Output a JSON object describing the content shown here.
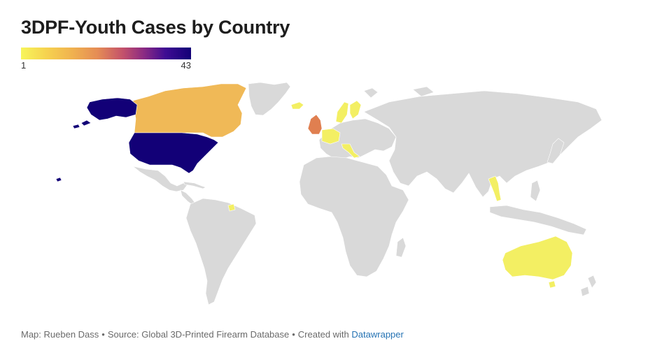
{
  "title": "3DPF-Youth Cases by Country",
  "legend": {
    "min": "1",
    "max": "43",
    "colors": [
      "#f7f55a",
      "#f0b24f",
      "#e58c55",
      "#c3516b",
      "#8c2b83",
      "#3e0c93",
      "#120077"
    ]
  },
  "colors": {
    "no_data": "#d9d9d9",
    "border": "#ffffff",
    "link": "#2472b3"
  },
  "regions": [
    {
      "name": "United States",
      "color": "#120077"
    },
    {
      "name": "Canada",
      "color": "#f0b957"
    },
    {
      "name": "United Kingdom",
      "color": "#e07f50"
    },
    {
      "name": "Australia",
      "color": "#f3ef63"
    },
    {
      "name": "Sweden",
      "color": "#f3ef63"
    },
    {
      "name": "Finland",
      "color": "#f3ef63"
    },
    {
      "name": "Germany",
      "color": "#f3ef63"
    },
    {
      "name": "Italy",
      "color": "#f3ef63"
    },
    {
      "name": "Vietnam",
      "color": "#f3ef63"
    },
    {
      "name": "Iceland",
      "color": "#f3ef63"
    },
    {
      "name": "Suriname",
      "color": "#f3ef63"
    }
  ],
  "footer": {
    "map_by": "Map: Rueben Dass",
    "source": "Source: Global 3D-Printed Firearm Database",
    "created": "Created with",
    "link": "Datawrapper",
    "separator": "•"
  }
}
